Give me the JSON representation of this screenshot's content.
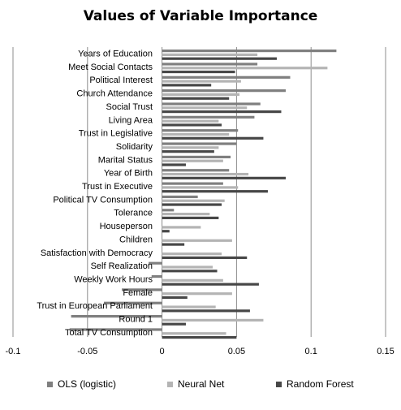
{
  "chart_data": {
    "type": "bar",
    "orientation": "horizontal",
    "title": "Values of Variable Importance",
    "categories": [
      "Years of Education",
      "Meet Social Contacts",
      "Political Interest",
      "Church Attendance",
      "Social Trust",
      "Living Area",
      "Trust in Legislative",
      "Solidarity",
      "Marital Status",
      "Year of Birth",
      "Trust in Executive",
      "Political TV Consumption",
      "Tolerance",
      "Houseperson",
      "Children",
      "Satisfaction with Democracy",
      "Self Realization",
      "Weekly Work Hours",
      "Female",
      "Trust in European Parliament",
      "Round 1",
      "Total TV Consumption"
    ],
    "series": [
      {
        "name": "OLS (logistic)",
        "color": "#7f7f7f",
        "values": [
          0.117,
          0.064,
          0.086,
          0.083,
          0.066,
          0.062,
          0.051,
          0.05,
          0.046,
          0.045,
          0.041,
          0.024,
          0.008,
          0.0,
          0.0,
          0.0,
          -0.009,
          -0.007,
          -0.027,
          -0.039,
          -0.061,
          -0.062
        ]
      },
      {
        "name": "Neural Net",
        "color": "#b4b4b4",
        "values": [
          0.064,
          0.111,
          0.053,
          0.052,
          0.057,
          0.038,
          0.045,
          0.038,
          0.041,
          0.058,
          0.051,
          0.042,
          0.032,
          0.026,
          0.047,
          0.04,
          0.034,
          0.041,
          0.047,
          0.036,
          0.068,
          0.043
        ]
      },
      {
        "name": "Random Forest",
        "color": "#474747",
        "values": [
          0.077,
          0.049,
          0.033,
          0.045,
          0.08,
          0.04,
          0.068,
          0.035,
          0.016,
          0.083,
          0.071,
          0.04,
          0.038,
          0.005,
          0.015,
          0.057,
          0.037,
          0.065,
          0.017,
          0.059,
          0.016,
          0.05
        ]
      }
    ],
    "xlim": [
      -0.1,
      0.15
    ],
    "xticks": [
      "-0.1",
      "-0.05",
      "0",
      "0.05",
      "0.1",
      "0.15"
    ],
    "xtick_values": [
      -0.1,
      -0.05,
      0,
      0.05,
      0.1,
      0.15
    ],
    "grid": "vertical",
    "legend_position": "bottom"
  }
}
